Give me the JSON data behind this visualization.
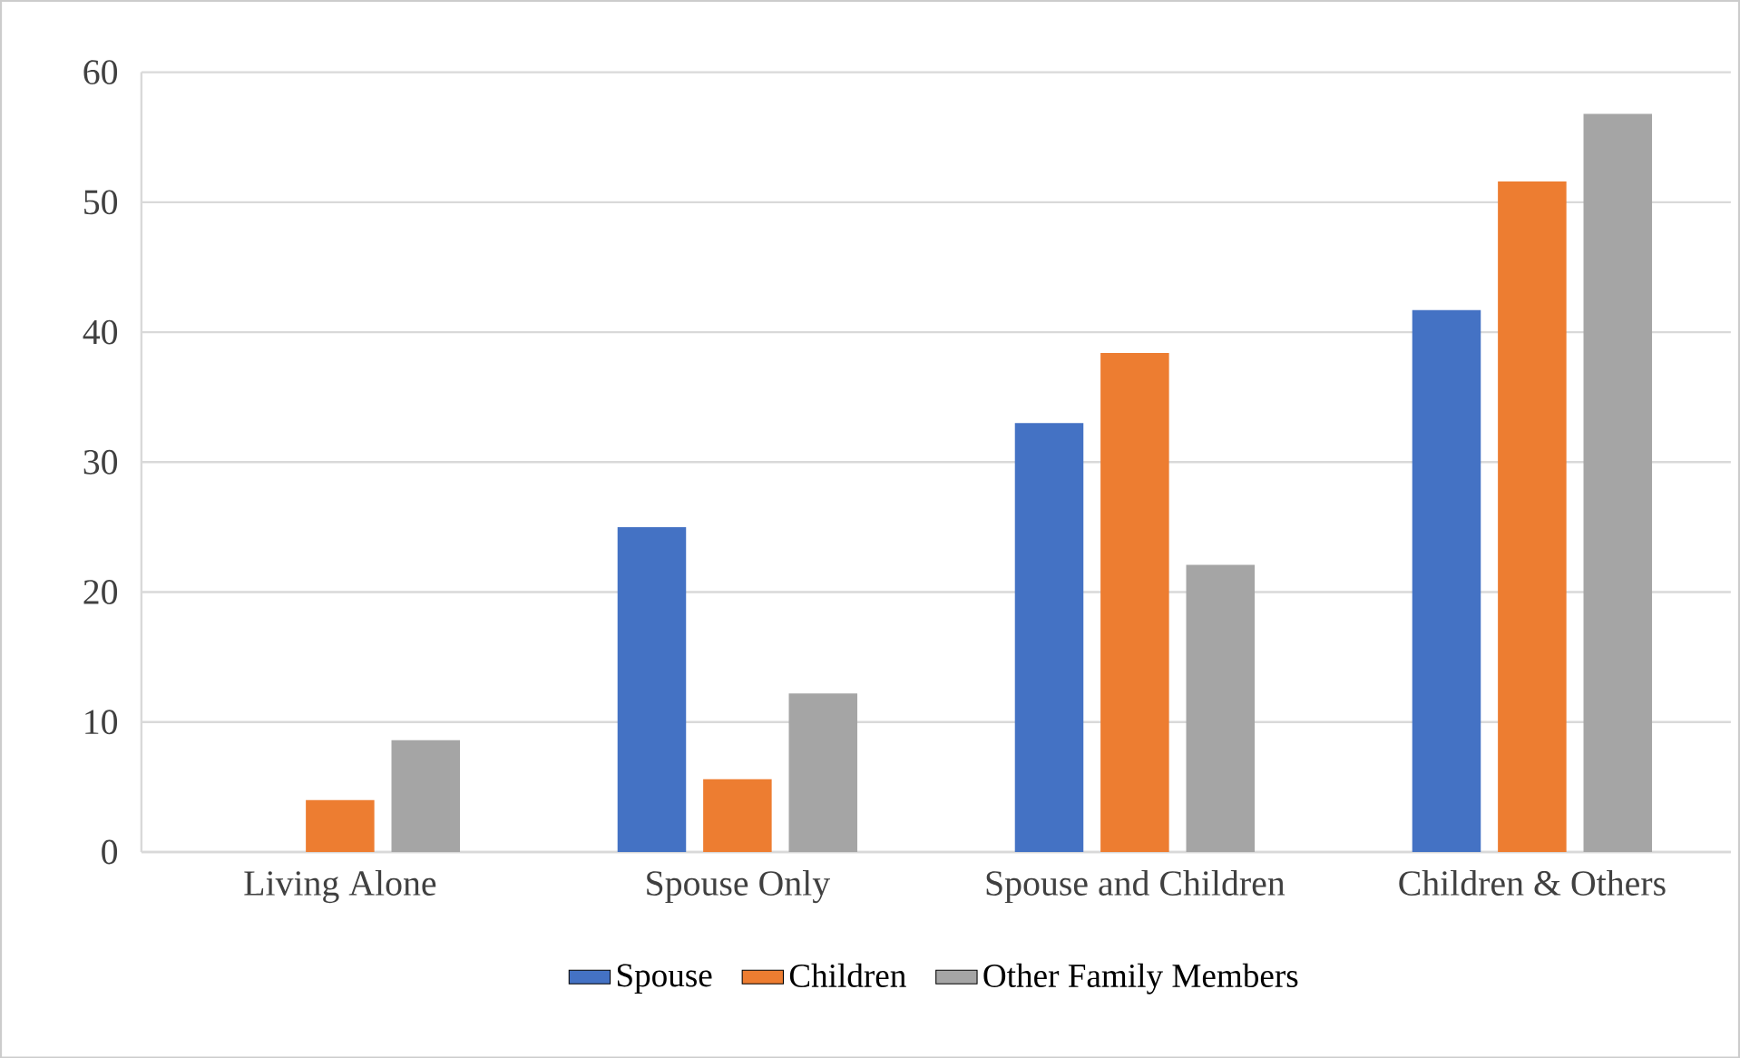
{
  "chart_data": {
    "type": "bar",
    "categories": [
      "Living Alone",
      "Spouse Only",
      "Spouse and Children",
      "Children & Others"
    ],
    "series": [
      {
        "name": "Spouse",
        "color": "#4472c4",
        "values": [
          null,
          25.0,
          33.0,
          41.7
        ]
      },
      {
        "name": "Children",
        "color": "#ed7d31",
        "values": [
          4.0,
          5.6,
          38.4,
          51.6
        ]
      },
      {
        "name": "Other Family Members",
        "color": "#a5a5a5",
        "values": [
          8.6,
          12.2,
          22.1,
          56.8
        ]
      }
    ],
    "ylim": [
      0,
      60
    ],
    "yticks": [
      0,
      10,
      20,
      30,
      40,
      50,
      60
    ],
    "grid": "y",
    "legend": "bottom"
  }
}
